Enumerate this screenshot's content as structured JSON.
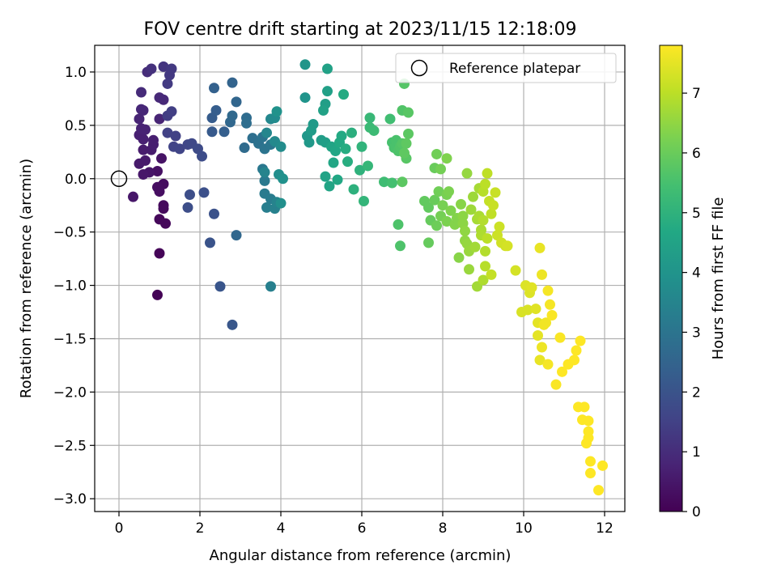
{
  "chart_data": {
    "type": "scatter",
    "title": "FOV centre drift starting at 2023/11/15 12:18:09",
    "xlabel": "Angular distance from reference (arcmin)",
    "ylabel": "Rotation from reference (arcmin)",
    "xlim": [
      -0.6,
      12.5
    ],
    "ylim": [
      -3.12,
      1.25
    ],
    "xticks": [
      0,
      2,
      4,
      6,
      8,
      10,
      12
    ],
    "yticks": [
      1.0,
      0.5,
      0.0,
      -0.5,
      -1.0,
      -1.5,
      -2.0,
      -2.5,
      -3.0
    ],
    "xtick_labels": [
      "0",
      "2",
      "4",
      "6",
      "8",
      "10",
      "12"
    ],
    "ytick_labels": [
      "1.0",
      "0.5",
      "0.0",
      "−0.5",
      "−1.0",
      "−1.5",
      "−2.0",
      "−2.5",
      "−3.0"
    ],
    "grid": true,
    "legend": {
      "position": "top-right",
      "label": "Reference platepar"
    },
    "reference_marker": {
      "x": 0,
      "y": 0
    },
    "colorbar": {
      "label": "Hours from first FF file",
      "colormap": "viridis",
      "range": [
        0,
        7.8
      ],
      "ticks": [
        0,
        1,
        2,
        3,
        4,
        5,
        6,
        7
      ],
      "tick_labels": [
        "0",
        "1",
        "2",
        "3",
        "4",
        "5",
        "6",
        "7"
      ]
    },
    "series": [
      {
        "points": [
          [
            0.95,
            -1.09,
            0.05
          ],
          [
            1.0,
            -0.7,
            0.1
          ],
          [
            1.0,
            -0.38,
            0.15
          ],
          [
            1.15,
            -0.42,
            0.15
          ],
          [
            1.1,
            -0.28,
            0.2
          ],
          [
            1.1,
            -0.25,
            0.2
          ],
          [
            1.1,
            -0.05,
            0.25
          ],
          [
            0.95,
            -0.08,
            0.3
          ],
          [
            1.0,
            -0.12,
            0.3
          ],
          [
            0.95,
            0.07,
            0.35
          ],
          [
            1.05,
            0.19,
            0.4
          ],
          [
            0.75,
            0.06,
            0.45
          ],
          [
            0.6,
            0.04,
            0.5
          ],
          [
            0.35,
            -0.17,
            0.5
          ],
          [
            0.5,
            0.14,
            0.55
          ],
          [
            0.65,
            0.17,
            0.55
          ],
          [
            0.8,
            0.27,
            0.6
          ],
          [
            0.6,
            0.27,
            0.6
          ],
          [
            0.85,
            0.32,
            0.65
          ],
          [
            0.85,
            0.36,
            0.65
          ],
          [
            0.6,
            0.37,
            0.7
          ],
          [
            0.5,
            0.41,
            0.7
          ],
          [
            0.65,
            0.46,
            0.75
          ],
          [
            0.55,
            0.47,
            0.75
          ],
          [
            0.5,
            0.56,
            0.8
          ],
          [
            1.0,
            0.56,
            0.8
          ],
          [
            0.6,
            0.64,
            0.85
          ],
          [
            0.55,
            0.65,
            0.85
          ],
          [
            1.1,
            0.74,
            0.9
          ],
          [
            1.0,
            0.76,
            0.9
          ],
          [
            0.55,
            0.81,
            0.95
          ],
          [
            0.7,
            1.0,
            1.0
          ],
          [
            0.8,
            1.03,
            1.1
          ],
          [
            1.1,
            1.05,
            1.2
          ],
          [
            1.25,
            0.97,
            1.3
          ],
          [
            1.3,
            1.03,
            1.3
          ],
          [
            1.2,
            0.89,
            1.35
          ],
          [
            1.2,
            0.59,
            1.4
          ],
          [
            1.3,
            0.63,
            1.45
          ],
          [
            1.2,
            0.43,
            1.5
          ],
          [
            1.4,
            0.4,
            1.5
          ],
          [
            1.35,
            0.3,
            1.55
          ],
          [
            1.5,
            0.28,
            1.6
          ],
          [
            1.7,
            0.32,
            1.65
          ],
          [
            1.8,
            0.33,
            1.7
          ],
          [
            1.95,
            0.28,
            1.75
          ],
          [
            2.05,
            0.21,
            1.8
          ],
          [
            1.75,
            -0.15,
            1.85
          ],
          [
            1.7,
            -0.27,
            1.85
          ],
          [
            2.1,
            -0.13,
            1.9
          ],
          [
            2.35,
            -0.33,
            1.95
          ],
          [
            2.25,
            -0.6,
            2.0
          ],
          [
            2.5,
            -1.01,
            2.05
          ],
          [
            2.8,
            -1.37,
            2.1
          ],
          [
            2.3,
            0.44,
            2.2
          ],
          [
            2.3,
            0.57,
            2.25
          ],
          [
            2.4,
            0.64,
            2.3
          ],
          [
            2.6,
            0.44,
            2.35
          ],
          [
            2.35,
            0.85,
            2.4
          ],
          [
            2.8,
            0.9,
            2.5
          ],
          [
            2.9,
            0.72,
            2.55
          ],
          [
            2.9,
            -0.53,
            2.6
          ],
          [
            2.75,
            0.53,
            2.6
          ],
          [
            2.8,
            0.59,
            2.65
          ],
          [
            3.1,
            0.29,
            2.7
          ],
          [
            3.15,
            0.57,
            2.75
          ],
          [
            3.15,
            0.52,
            2.8
          ],
          [
            3.3,
            0.38,
            2.85
          ],
          [
            3.45,
            0.33,
            2.9
          ],
          [
            3.55,
            0.39,
            2.95
          ],
          [
            3.6,
            0.28,
            3.0
          ],
          [
            3.75,
            0.32,
            3.05
          ],
          [
            3.55,
            0.09,
            3.1
          ],
          [
            3.6,
            -0.02,
            3.15
          ],
          [
            3.6,
            -0.14,
            3.2
          ],
          [
            3.75,
            -0.19,
            3.25
          ],
          [
            3.65,
            -0.27,
            3.3
          ],
          [
            3.75,
            -1.01,
            3.35
          ],
          [
            3.85,
            -0.28,
            3.4
          ],
          [
            3.9,
            -0.22,
            3.45
          ],
          [
            3.6,
            0.06,
            3.5
          ],
          [
            3.65,
            0.43,
            3.55
          ],
          [
            3.75,
            0.56,
            3.6
          ],
          [
            3.85,
            0.35,
            3.65
          ],
          [
            3.85,
            0.57,
            3.7
          ],
          [
            4.0,
            0.3,
            3.75
          ],
          [
            3.95,
            0.04,
            3.8
          ],
          [
            4.0,
            -0.23,
            3.85
          ],
          [
            4.05,
            0.0,
            3.9
          ],
          [
            3.9,
            0.63,
            3.95
          ],
          [
            4.6,
            0.76,
            4.0
          ],
          [
            4.6,
            1.07,
            4.05
          ],
          [
            4.65,
            0.4,
            4.1
          ],
          [
            4.7,
            0.34,
            4.15
          ],
          [
            4.8,
            0.51,
            4.2
          ],
          [
            4.75,
            0.45,
            4.25
          ],
          [
            5.0,
            0.36,
            4.3
          ],
          [
            5.1,
            0.34,
            4.35
          ],
          [
            5.1,
            0.7,
            4.35
          ],
          [
            5.15,
            0.82,
            4.4
          ],
          [
            5.15,
            1.03,
            4.45
          ],
          [
            5.05,
            0.64,
            4.45
          ],
          [
            5.1,
            0.02,
            4.5
          ],
          [
            5.2,
            -0.07,
            4.55
          ],
          [
            5.25,
            0.3,
            4.55
          ],
          [
            5.3,
            0.15,
            4.6
          ],
          [
            5.35,
            0.26,
            4.6
          ],
          [
            5.4,
            -0.01,
            4.65
          ],
          [
            5.5,
            0.4,
            4.7
          ],
          [
            5.45,
            0.34,
            4.7
          ],
          [
            5.55,
            0.79,
            4.75
          ],
          [
            5.6,
            0.28,
            4.8
          ],
          [
            5.65,
            0.16,
            4.85
          ],
          [
            5.75,
            0.43,
            4.9
          ],
          [
            5.8,
            -0.1,
            4.95
          ],
          [
            5.95,
            0.08,
            5.0
          ],
          [
            6.0,
            0.3,
            5.05
          ],
          [
            6.05,
            -0.21,
            5.1
          ],
          [
            6.15,
            0.12,
            5.15
          ],
          [
            6.2,
            0.57,
            5.2
          ],
          [
            6.2,
            0.48,
            5.25
          ],
          [
            6.3,
            0.45,
            5.3
          ],
          [
            6.55,
            -0.03,
            5.35
          ],
          [
            6.7,
            0.56,
            5.4
          ],
          [
            6.75,
            -0.04,
            5.45
          ],
          [
            6.75,
            0.34,
            5.5
          ],
          [
            6.8,
            0.29,
            5.55
          ],
          [
            6.85,
            0.36,
            5.55
          ],
          [
            6.9,
            0.26,
            5.6
          ],
          [
            6.9,
            -0.43,
            5.6
          ],
          [
            6.95,
            -0.63,
            5.6
          ],
          [
            6.95,
            0.3,
            5.65
          ],
          [
            7.0,
            0.64,
            5.65
          ],
          [
            7.05,
            0.89,
            5.7
          ],
          [
            7.0,
            0.33,
            5.7
          ],
          [
            7.1,
            0.19,
            5.75
          ],
          [
            7.15,
            0.62,
            5.75
          ],
          [
            7.15,
            0.42,
            5.8
          ],
          [
            7.0,
            -0.03,
            5.8
          ],
          [
            7.1,
            0.33,
            5.85
          ],
          [
            7.05,
            0.24,
            5.85
          ],
          [
            7.55,
            -0.21,
            5.9
          ],
          [
            7.65,
            -0.27,
            5.9
          ],
          [
            7.65,
            -0.6,
            5.95
          ],
          [
            7.7,
            -0.39,
            5.95
          ],
          [
            7.8,
            -0.2,
            6.0
          ],
          [
            7.8,
            0.1,
            6.0
          ],
          [
            7.85,
            -0.44,
            6.05
          ],
          [
            7.85,
            0.23,
            6.1
          ],
          [
            7.9,
            -0.12,
            6.1
          ],
          [
            7.95,
            0.09,
            6.15
          ],
          [
            7.95,
            -0.35,
            6.15
          ],
          [
            8.0,
            -0.25,
            6.2
          ],
          [
            8.1,
            -0.15,
            6.2
          ],
          [
            8.1,
            -0.4,
            6.25
          ],
          [
            8.15,
            -0.12,
            6.25
          ],
          [
            8.1,
            0.19,
            6.3
          ],
          [
            8.2,
            -0.3,
            6.3
          ],
          [
            8.3,
            -0.43,
            6.35
          ],
          [
            8.35,
            -0.37,
            6.35
          ],
          [
            8.4,
            -0.74,
            6.4
          ],
          [
            8.45,
            -0.24,
            6.4
          ],
          [
            8.5,
            -0.35,
            6.45
          ],
          [
            8.5,
            -0.42,
            6.45
          ],
          [
            8.55,
            -0.58,
            6.5
          ],
          [
            8.55,
            -0.49,
            6.5
          ],
          [
            8.6,
            0.05,
            6.55
          ],
          [
            8.6,
            -0.61,
            6.55
          ],
          [
            8.65,
            -0.68,
            6.6
          ],
          [
            8.65,
            -0.85,
            6.6
          ],
          [
            8.7,
            -0.29,
            6.65
          ],
          [
            8.75,
            -0.17,
            6.65
          ],
          [
            8.8,
            -0.64,
            6.7
          ],
          [
            8.85,
            -1.01,
            6.7
          ],
          [
            8.85,
            -0.38,
            6.75
          ],
          [
            8.9,
            -0.09,
            6.75
          ],
          [
            8.9,
            -0.35,
            6.8
          ],
          [
            8.95,
            -0.48,
            6.8
          ],
          [
            8.95,
            -0.53,
            6.85
          ],
          [
            9.0,
            -0.95,
            6.85
          ],
          [
            9.0,
            -0.39,
            6.9
          ],
          [
            9.05,
            -0.68,
            6.9
          ],
          [
            9.05,
            -0.82,
            6.95
          ],
          [
            9.0,
            -0.12,
            6.95
          ],
          [
            9.05,
            -0.05,
            7.0
          ],
          [
            9.1,
            -0.56,
            7.0
          ],
          [
            9.1,
            0.05,
            7.05
          ],
          [
            9.2,
            -0.33,
            7.05
          ],
          [
            9.15,
            -0.21,
            7.1
          ],
          [
            9.2,
            -0.9,
            7.1
          ],
          [
            9.25,
            -0.25,
            7.15
          ],
          [
            9.3,
            -0.13,
            7.15
          ],
          [
            9.35,
            -0.53,
            7.2
          ],
          [
            9.4,
            -0.45,
            7.2
          ],
          [
            9.45,
            -0.6,
            7.25
          ],
          [
            9.55,
            -0.63,
            7.25
          ],
          [
            9.6,
            -0.63,
            7.3
          ],
          [
            9.8,
            -0.86,
            7.3
          ],
          [
            9.95,
            -1.25,
            7.35
          ],
          [
            10.1,
            -1.23,
            7.35
          ],
          [
            10.05,
            -1.0,
            7.4
          ],
          [
            10.15,
            -1.07,
            7.4
          ],
          [
            10.2,
            -1.02,
            7.45
          ],
          [
            10.3,
            -1.22,
            7.45
          ],
          [
            10.35,
            -1.35,
            7.5
          ],
          [
            10.35,
            -1.47,
            7.5
          ],
          [
            10.4,
            -1.7,
            7.55
          ],
          [
            10.4,
            -0.65,
            7.55
          ],
          [
            10.45,
            -0.9,
            7.6
          ],
          [
            10.45,
            -1.58,
            7.6
          ],
          [
            10.5,
            -1.37,
            7.65
          ],
          [
            10.55,
            -1.35,
            7.65
          ],
          [
            10.6,
            -1.05,
            7.7
          ],
          [
            10.6,
            -1.74,
            7.7
          ],
          [
            10.65,
            -1.18,
            7.7
          ],
          [
            10.7,
            -1.28,
            7.75
          ],
          [
            10.8,
            -1.93,
            7.75
          ],
          [
            10.9,
            -1.49,
            7.75
          ],
          [
            10.95,
            -1.81,
            7.8
          ],
          [
            11.1,
            -1.74,
            7.8
          ],
          [
            11.25,
            -1.7,
            7.8
          ],
          [
            11.3,
            -1.61,
            7.8
          ],
          [
            11.35,
            -2.14,
            7.8
          ],
          [
            11.4,
            -1.52,
            7.8
          ],
          [
            11.45,
            -2.26,
            7.8
          ],
          [
            11.5,
            -2.14,
            7.8
          ],
          [
            11.55,
            -2.48,
            7.8
          ],
          [
            11.6,
            -2.27,
            7.8
          ],
          [
            11.6,
            -2.37,
            7.8
          ],
          [
            11.6,
            -2.43,
            7.8
          ],
          [
            11.65,
            -2.65,
            7.8
          ],
          [
            11.65,
            -2.76,
            7.8
          ],
          [
            11.85,
            -2.92,
            7.8
          ],
          [
            11.95,
            -2.69,
            7.8
          ]
        ]
      }
    ]
  }
}
